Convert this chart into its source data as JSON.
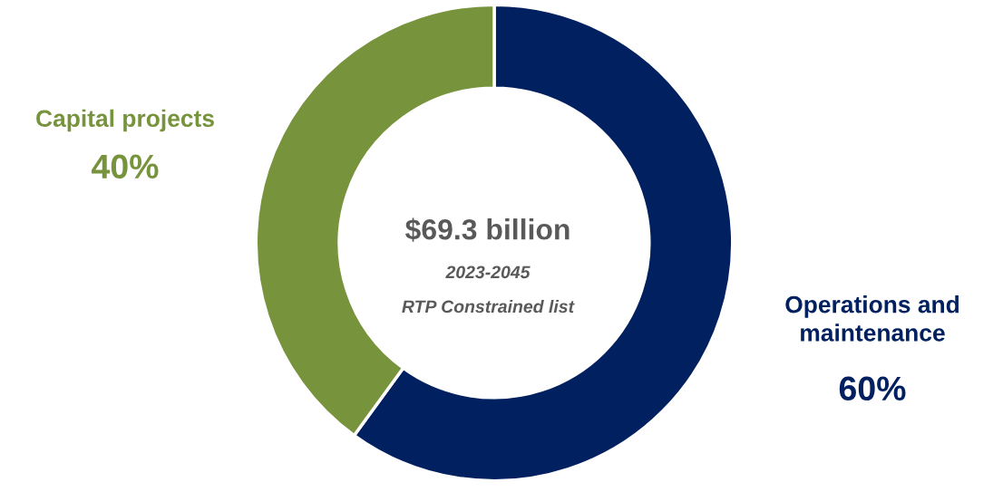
{
  "chart_data": {
    "type": "donut",
    "categories": [
      "Operations and\nmaintenance",
      "Capital projects"
    ],
    "values": [
      60,
      40
    ],
    "colors": [
      "#002060",
      "#77933c"
    ],
    "value_labels": [
      "60%",
      "40%"
    ],
    "annotations": [
      "$69.3 billion",
      "2023-2045",
      "RTP Constrained list"
    ]
  }
}
